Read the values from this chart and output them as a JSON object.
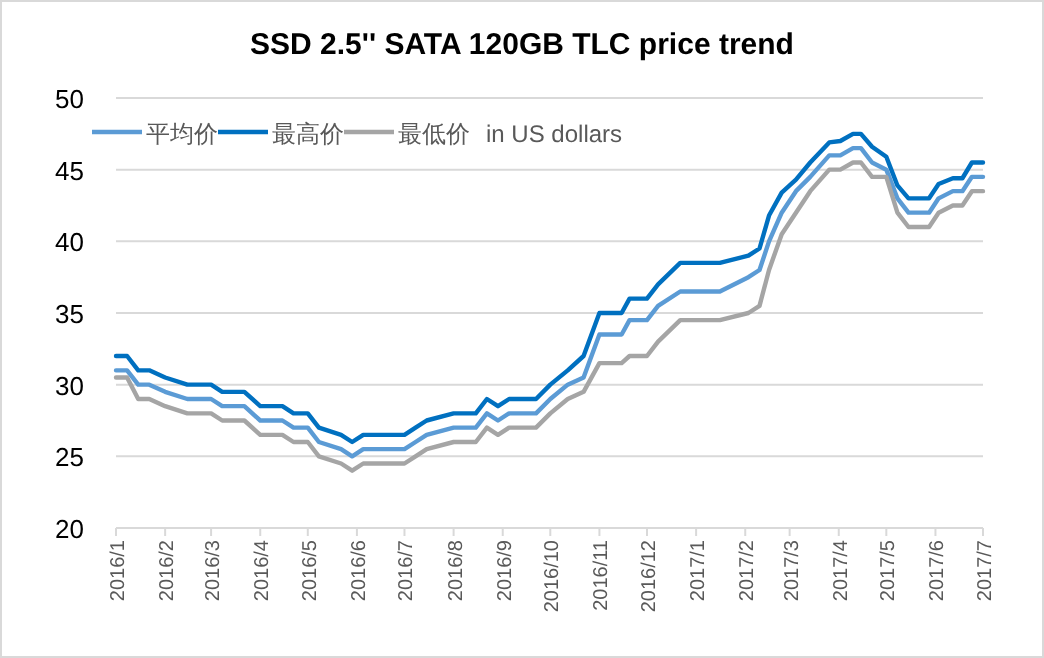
{
  "chart_data": {
    "type": "line",
    "title": "SSD 2.5'' SATA 120GB TLC price trend",
    "x": [
      "2016-01-01",
      "2016-01-08",
      "2016-01-15",
      "2016-01-22",
      "2016-02-01",
      "2016-02-15",
      "2016-03-01",
      "2016-03-08",
      "2016-03-22",
      "2016-04-01",
      "2016-04-15",
      "2016-04-22",
      "2016-05-01",
      "2016-05-08",
      "2016-05-22",
      "2016-05-29",
      "2016-06-05",
      "2016-07-01",
      "2016-07-08",
      "2016-07-15",
      "2016-08-01",
      "2016-08-15",
      "2016-08-22",
      "2016-08-29",
      "2016-09-05",
      "2016-09-22",
      "2016-10-01",
      "2016-10-12",
      "2016-10-22",
      "2016-11-01",
      "2016-11-15",
      "2016-11-20",
      "2016-12-01",
      "2016-12-08",
      "2016-12-22",
      "2017-01-16",
      "2017-02-03",
      "2017-02-10",
      "2017-02-16",
      "2017-02-24",
      "2017-03-05",
      "2017-03-14",
      "2017-03-26",
      "2017-04-02",
      "2017-04-10",
      "2017-04-15",
      "2017-04-22",
      "2017-05-01",
      "2017-05-08",
      "2017-05-15",
      "2017-05-28",
      "2017-06-03",
      "2017-06-12",
      "2017-06-18",
      "2017-06-24",
      "2017-07-01"
    ],
    "series": [
      {
        "name": "平均价",
        "color": "#5b9bd5",
        "values": [
          31,
          31,
          30,
          30,
          29.5,
          29,
          29,
          28.5,
          28.5,
          27.5,
          27.5,
          27,
          27,
          26,
          25.5,
          25,
          25.5,
          25.5,
          26,
          26.5,
          27,
          27,
          28,
          27.5,
          28,
          28,
          29,
          30,
          30.5,
          33.5,
          33.5,
          34.5,
          34.5,
          35.5,
          36.5,
          36.5,
          37.5,
          38,
          40,
          42,
          43.5,
          44.5,
          46,
          46,
          46.5,
          46.5,
          45.5,
          45,
          43,
          42,
          42,
          43,
          43.5,
          43.5,
          44.5,
          44.5
        ]
      },
      {
        "name": "最高价",
        "color": "#0070c0",
        "values": [
          32,
          32,
          31,
          31,
          30.5,
          30,
          30,
          29.5,
          29.5,
          28.5,
          28.5,
          28,
          28,
          27,
          26.5,
          26,
          26.5,
          26.5,
          27,
          27.5,
          28,
          28,
          29,
          28.5,
          29,
          29,
          30,
          31,
          32,
          35,
          35,
          36,
          36,
          37,
          38.5,
          38.5,
          39,
          39.5,
          41.8,
          43.4,
          44.3,
          45.5,
          46.9,
          47,
          47.5,
          47.5,
          46.6,
          45.9,
          43.9,
          43,
          43,
          44,
          44.4,
          44.4,
          45.5,
          45.5
        ]
      },
      {
        "name": "最低价",
        "color": "#a5a5a5",
        "values": [
          30.5,
          30.5,
          29,
          29,
          28.5,
          28,
          28,
          27.5,
          27.5,
          26.5,
          26.5,
          26,
          26,
          25,
          24.5,
          24,
          24.5,
          24.5,
          25,
          25.5,
          26,
          26,
          27,
          26.5,
          27,
          27,
          28,
          29,
          29.5,
          31.5,
          31.5,
          32,
          32,
          33,
          34.5,
          34.5,
          35,
          35.5,
          38,
          40.5,
          42,
          43.5,
          45,
          45,
          45.5,
          45.5,
          44.5,
          44.5,
          42,
          41,
          41,
          42,
          42.5,
          42.5,
          43.5,
          43.5
        ]
      }
    ],
    "annotations": [
      "in US dollars"
    ],
    "xlim": [
      "2016-01-01",
      "2017-07-01"
    ],
    "xticks": [
      {
        "value": "2016-01",
        "label": "2016/1"
      },
      {
        "value": "2016-02",
        "label": "2016/2"
      },
      {
        "value": "2016-03",
        "label": "2016/3"
      },
      {
        "value": "2016-04",
        "label": "2016/4"
      },
      {
        "value": "2016-05",
        "label": "2016/5"
      },
      {
        "value": "2016-06",
        "label": "2016/6"
      },
      {
        "value": "2016-07",
        "label": "2016/7"
      },
      {
        "value": "2016-08",
        "label": "2016/8"
      },
      {
        "value": "2016-09",
        "label": "2016/9"
      },
      {
        "value": "2016-10",
        "label": "2016/10"
      },
      {
        "value": "2016-11",
        "label": "2016/11"
      },
      {
        "value": "2016-12",
        "label": "2016/12"
      },
      {
        "value": "2017-01",
        "label": "2017/1"
      },
      {
        "value": "2017-02",
        "label": "2017/2"
      },
      {
        "value": "2017-03",
        "label": "2017/3"
      },
      {
        "value": "2017-04",
        "label": "2017/4"
      },
      {
        "value": "2017-05",
        "label": "2017/5"
      },
      {
        "value": "2017-06",
        "label": "2017/6"
      },
      {
        "value": "2017-07",
        "label": "2017/7"
      }
    ],
    "ylim": [
      20,
      50
    ],
    "yticks": [
      20,
      25,
      30,
      35,
      40,
      45,
      50
    ],
    "grid": "y",
    "legend": "top left",
    "marker": "none",
    "line_style": "solid"
  }
}
